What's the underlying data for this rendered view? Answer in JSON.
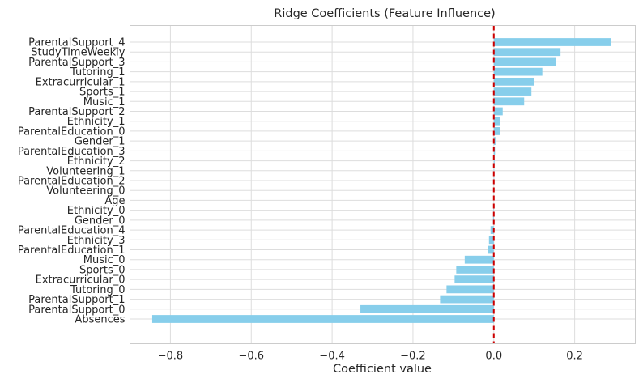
{
  "chart_data": {
    "type": "bar",
    "orientation": "horizontal",
    "title": "Ridge Coefficients (Feature Influence)",
    "xlabel": "Coefficient value",
    "ylabel": "",
    "xlim": [
      -0.9,
      0.35
    ],
    "xticks": [
      -0.8,
      -0.6,
      -0.4,
      -0.2,
      0.0,
      0.2
    ],
    "xtick_labels": [
      "−0.8",
      "−0.6",
      "−0.4",
      "−0.2",
      "0.0",
      "0.2"
    ],
    "grid": true,
    "bar_color": "#87ceeb",
    "reference_line": {
      "x": 0.0,
      "color": "#cc0000",
      "style": "dashed"
    },
    "categories": [
      "ParentalSupport_4",
      "StudyTimeWeekly",
      "ParentalSupport_3",
      "Tutoring_1",
      "Extracurricular_1",
      "Sports_1",
      "Music_1",
      "ParentalSupport_2",
      "Ethnicity_1",
      "ParentalEducation_0",
      "Gender_1",
      "ParentalEducation_3",
      "Ethnicity_2",
      "Volunteering_1",
      "ParentalEducation_2",
      "Volunteering_0",
      "Age",
      "Ethnicity_0",
      "Gender_0",
      "ParentalEducation_4",
      "Ethnicity_3",
      "ParentalEducation_1",
      "Music_0",
      "Sports_0",
      "Extracurricular_0",
      "Tutoring_0",
      "ParentalSupport_1",
      "ParentalSupport_0",
      "Absences"
    ],
    "values": [
      0.29,
      0.165,
      0.153,
      0.12,
      0.099,
      0.093,
      0.075,
      0.022,
      0.016,
      0.015,
      0.004,
      0.003,
      0.002,
      0.001,
      0.001,
      0.0,
      0.0,
      -0.001,
      -0.002,
      -0.008,
      -0.012,
      -0.014,
      -0.072,
      -0.093,
      -0.097,
      -0.117,
      -0.133,
      -0.33,
      -0.845
    ]
  }
}
